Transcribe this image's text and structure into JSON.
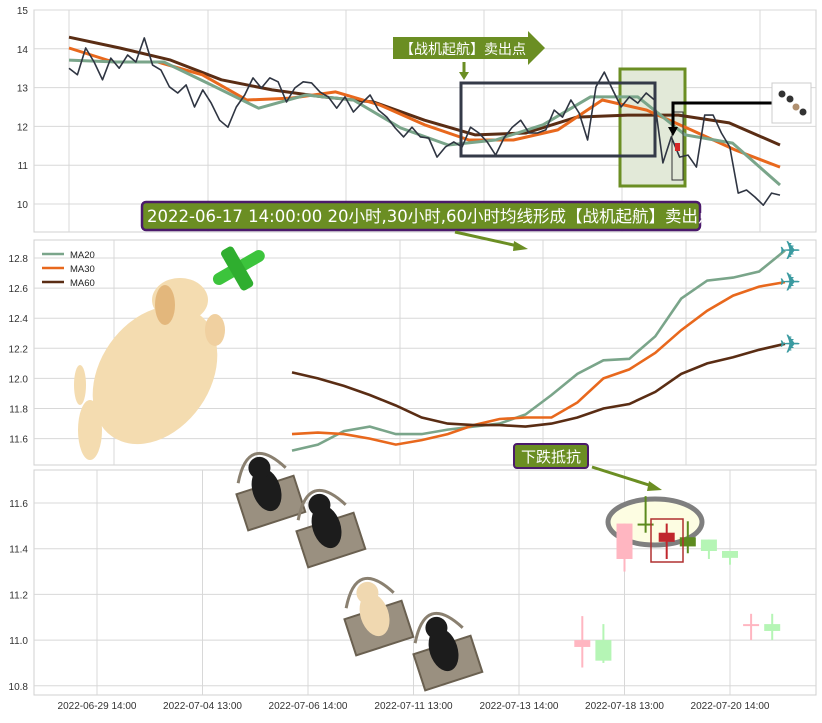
{
  "colors": {
    "price": "#2f3542",
    "ma20": "#7aa58a",
    "ma30": "#e8681d",
    "ma60": "#5a2d14",
    "annotation_green": "#6b8e23",
    "annotation_border": "#4b1a6b",
    "red": "#c0272d",
    "pink": "#ffb6c1",
    "light_green": "#b5f5b5",
    "dark_green": "#5c8a1e"
  },
  "chart_data": [
    {
      "type": "line",
      "panel": "top",
      "ylim": [
        9.3,
        15
      ],
      "yticks": [
        "10",
        "11",
        "12",
        "13",
        "14",
        "15"
      ],
      "grid": true,
      "series": [
        {
          "key": "price",
          "values": [
            13.5,
            13.33,
            14.02,
            13.66,
            13.2,
            13.76,
            13.5,
            13.84,
            13.66,
            14.28,
            13.58,
            13.45,
            13.02,
            12.86,
            13.07,
            12.5,
            12.94,
            12.6,
            12.16,
            11.98,
            12.5,
            12.81,
            13.25,
            12.99,
            13.25,
            13.15,
            12.63,
            12.99,
            13.15,
            13.12,
            12.89,
            12.76,
            12.47,
            12.76,
            12.37,
            12.6,
            12.81,
            12.42,
            12.24,
            11.96,
            11.73,
            11.98,
            11.73,
            11.7,
            11.21,
            11.47,
            11.6,
            11.47,
            11.98,
            11.83,
            11.6,
            11.26,
            11.7,
            11.98,
            12.16,
            11.83,
            11.83,
            11.91,
            12.42,
            12.24,
            12.68,
            12.34,
            11.65,
            13.02,
            13.4,
            12.94,
            12.5,
            12.76,
            12.6,
            12.86,
            12.68,
            11.06,
            11.73,
            11.21,
            11.26,
            10.95,
            12.29,
            12.29,
            11.83,
            11.47,
            10.28,
            10.36,
            10.18,
            9.97,
            10.28,
            10.23
          ]
        },
        {
          "key": "ma20",
          "values": [
            13.71,
            13.66,
            13.66,
            13.07,
            12.47,
            12.81,
            12.68,
            11.96,
            11.52,
            11.65,
            12.04,
            12.76,
            12.76,
            11.78,
            11.57,
            10.49
          ]
        },
        {
          "key": "ma30",
          "values": [
            14.02,
            13.66,
            13.66,
            13.33,
            12.68,
            12.73,
            12.89,
            12.55,
            12.04,
            11.65,
            11.65,
            11.91,
            12.68,
            12.42,
            11.91,
            11.39,
            10.95
          ]
        },
        {
          "key": "ma60",
          "values": [
            14.3,
            14.02,
            13.71,
            13.2,
            12.94,
            12.76,
            12.63,
            12.16,
            11.78,
            11.83,
            12.24,
            12.29,
            12.29,
            12.09,
            11.52
          ]
        }
      ]
    },
    {
      "type": "line",
      "panel": "middle",
      "ylim": [
        11.53,
        12.88
      ],
      "yticks": [
        "11.6",
        "11.8",
        "12.0",
        "12.2",
        "12.4",
        "12.6",
        "12.8"
      ],
      "grid": true,
      "legend": "top-left",
      "series": [
        {
          "name": "MA20",
          "key": "ma20",
          "values": [
            11.52,
            11.56,
            11.65,
            11.68,
            11.63,
            11.63,
            11.66,
            11.68,
            11.7,
            11.76,
            11.89,
            12.03,
            12.12,
            12.13,
            12.28,
            12.53,
            12.65,
            12.67,
            12.71,
            12.85
          ]
        },
        {
          "name": "MA30",
          "key": "ma30",
          "values": [
            11.63,
            11.64,
            11.63,
            11.6,
            11.56,
            11.59,
            11.63,
            11.69,
            11.73,
            11.74,
            11.74,
            11.84,
            12.0,
            12.06,
            12.17,
            12.32,
            12.45,
            12.55,
            12.61,
            12.64
          ]
        },
        {
          "name": "MA60",
          "key": "ma60",
          "values": [
            12.04,
            12.0,
            11.95,
            11.89,
            11.82,
            11.74,
            11.7,
            11.69,
            11.69,
            11.68,
            11.7,
            11.74,
            11.8,
            11.83,
            11.91,
            12.03,
            12.1,
            12.14,
            12.19,
            12.23
          ]
        }
      ]
    },
    {
      "type": "candlestick",
      "panel": "bottom",
      "ylim": [
        10.77,
        11.74
      ],
      "yticks": [
        "10.8",
        "11.0",
        "11.2",
        "11.4",
        "11.6"
      ],
      "grid": true,
      "xticks": [
        {
          "i": 0,
          "label": "2022-06-29 14:00"
        },
        {
          "i": 5,
          "label": "2022-07-04 13:00"
        },
        {
          "i": 10,
          "label": "2022-07-06 14:00"
        },
        {
          "i": 15,
          "label": "2022-07-11 13:00"
        },
        {
          "i": 20,
          "label": "2022-07-13 14:00"
        },
        {
          "i": 25,
          "label": "2022-07-18 13:00"
        },
        {
          "i": 30,
          "label": "2022-07-20 14:00"
        }
      ],
      "candles": [
        {
          "i": 23,
          "open": 11.0,
          "close": 10.97,
          "high": 11.105,
          "low": 10.88,
          "color": "pink"
        },
        {
          "i": 24,
          "open": 11.0,
          "close": 10.91,
          "high": 11.07,
          "low": 10.9,
          "color": "light_green"
        },
        {
          "i": 25,
          "open": 11.51,
          "close": 11.355,
          "high": 11.51,
          "low": 11.3,
          "color": "pink"
        },
        {
          "i": 26,
          "open": 11.51,
          "close": 11.505,
          "high": 11.63,
          "low": 11.47,
          "color": "dark_green"
        },
        {
          "i": 27,
          "open": 11.47,
          "close": 11.43,
          "high": 11.51,
          "low": 11.355,
          "color": "red"
        },
        {
          "i": 28,
          "open": 11.45,
          "close": 11.41,
          "high": 11.52,
          "low": 11.38,
          "color": "dark_green"
        },
        {
          "i": 29,
          "open": 11.44,
          "close": 11.39,
          "high": 11.44,
          "low": 11.355,
          "color": "light_green"
        },
        {
          "i": 30,
          "open": 11.39,
          "close": 11.36,
          "high": 11.39,
          "low": 11.33,
          "color": "light_green"
        },
        {
          "i": 31,
          "open": 11.07,
          "close": 11.065,
          "high": 11.115,
          "low": 11.0,
          "color": "pink"
        },
        {
          "i": 32,
          "open": 11.07,
          "close": 11.04,
          "high": 11.115,
          "low": 11.0,
          "color": "light_green"
        }
      ]
    }
  ],
  "annotations": {
    "sell_arrow_label": "【战机起航】卖出点",
    "caption": "2022-06-17 14:00:00 20小时,30小时,60小时均线形成【战机起航】卖出点",
    "resistance_label": "下跌抵抗",
    "airplane_icon": "✈"
  }
}
